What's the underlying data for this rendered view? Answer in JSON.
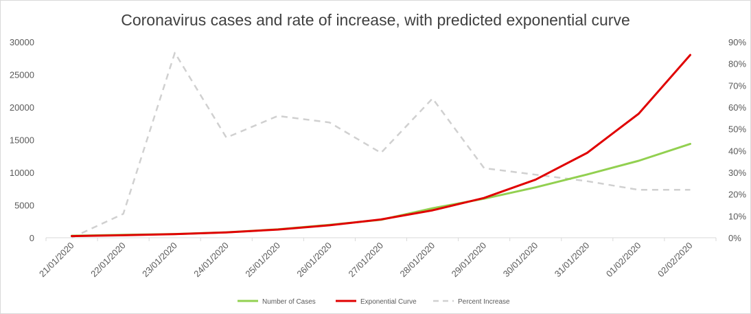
{
  "chart_data": {
    "type": "line",
    "title": "Coronavirus cases and rate of increase, with predicted exponential curve",
    "categories": [
      "21/01/2020",
      "22/01/2020",
      "23/01/2020",
      "24/01/2020",
      "25/01/2020",
      "26/01/2020",
      "27/01/2020",
      "28/01/2020",
      "29/01/2020",
      "30/01/2020",
      "31/01/2020",
      "01/02/2020",
      "02/02/2020"
    ],
    "y_left": {
      "min": 0,
      "max": 30000,
      "ticks": [
        0,
        5000,
        10000,
        15000,
        20000,
        25000,
        30000
      ],
      "tick_labels": [
        "0",
        "5000",
        "10000",
        "15000",
        "20000",
        "25000",
        "30000"
      ]
    },
    "y_right": {
      "min": 0,
      "max": 0.9,
      "ticks": [
        0,
        0.1,
        0.2,
        0.3,
        0.4,
        0.5,
        0.6,
        0.7,
        0.8,
        0.9
      ],
      "tick_labels": [
        "0%",
        "10%",
        "20%",
        "30%",
        "40%",
        "50%",
        "60%",
        "70%",
        "80%",
        "90%"
      ]
    },
    "series": [
      {
        "name": "Number of Cases",
        "axis": "left",
        "color": "#92d050",
        "dash": "solid",
        "values": [
          300,
          440,
          571,
          830,
          1287,
          1975,
          2744,
          4515,
          5974,
          7711,
          9692,
          11791,
          14380
        ]
      },
      {
        "name": "Exponential Curve",
        "axis": "left",
        "color": "#e00000",
        "dash": "solid",
        "values": [
          250,
          380,
          560,
          820,
          1250,
          1900,
          2800,
          4200,
          6100,
          8900,
          13000,
          19000,
          28000
        ]
      },
      {
        "name": "Percent Increase",
        "axis": "right",
        "color": "#d0d0d0",
        "dash": "dashed",
        "values": [
          0.0,
          0.11,
          0.85,
          0.46,
          0.56,
          0.53,
          0.39,
          0.64,
          0.32,
          0.29,
          0.26,
          0.22,
          0.22
        ]
      }
    ],
    "legend": {
      "position": "bottom",
      "entries": [
        "Number of Cases",
        "Exponential Curve",
        "Percent Increase"
      ]
    },
    "grid": false
  }
}
